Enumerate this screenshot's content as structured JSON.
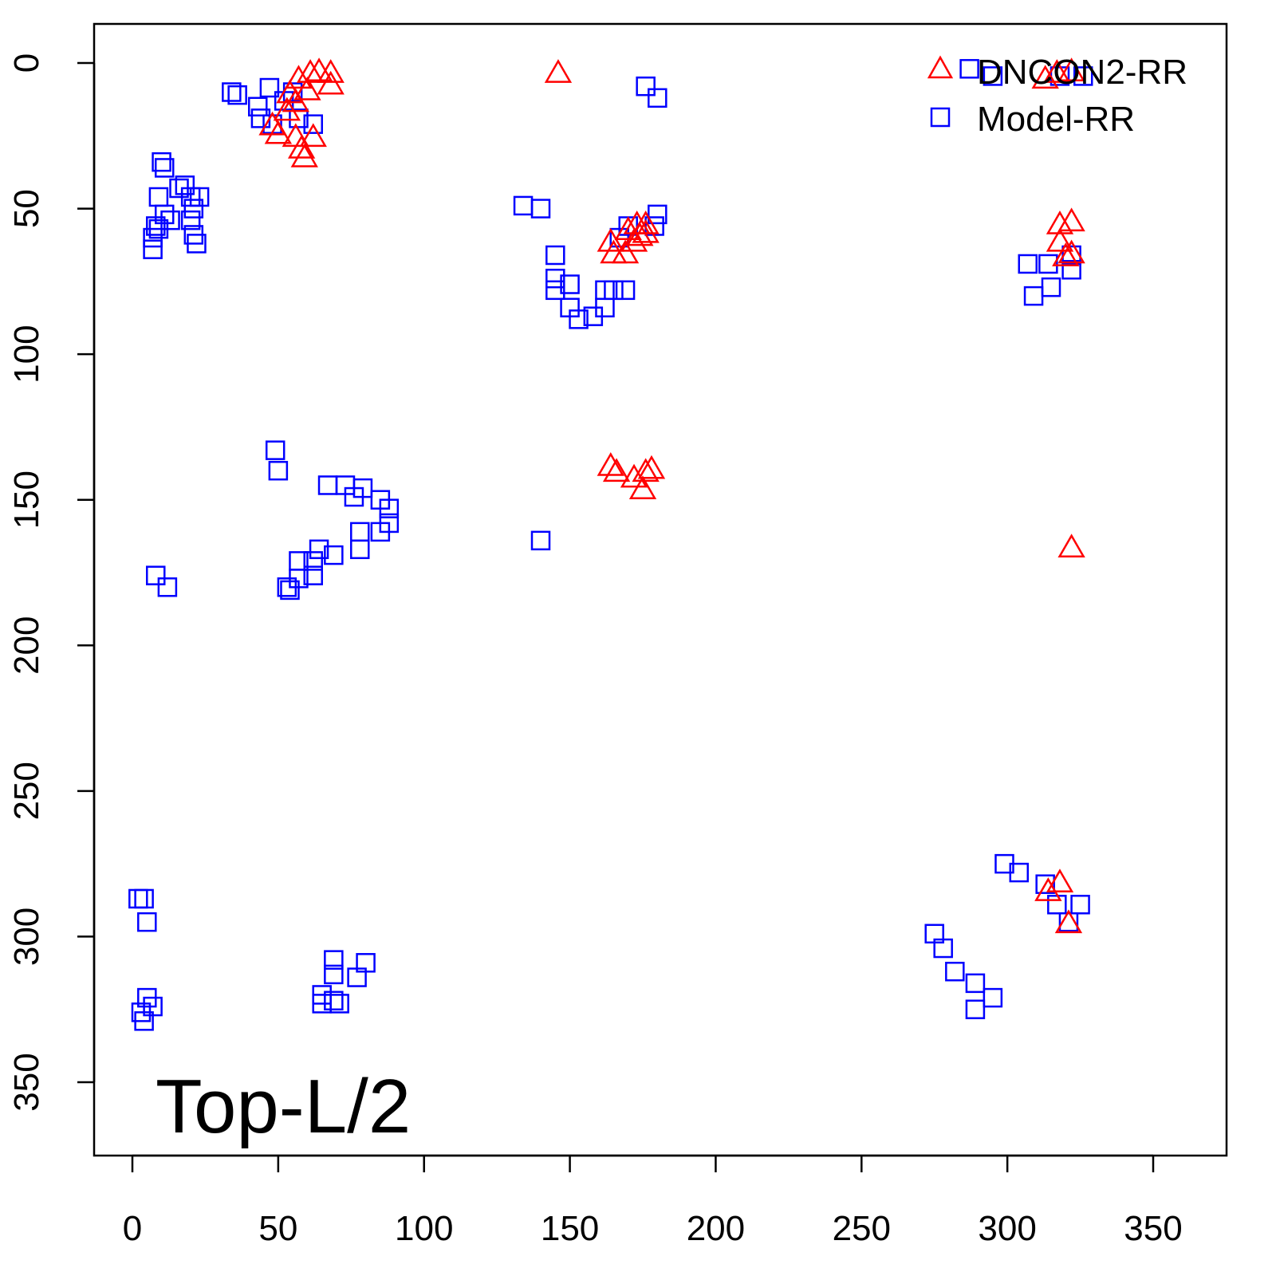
{
  "chart_data": {
    "type": "scatter",
    "title": "",
    "xlabel": "",
    "ylabel": "",
    "xlim": [
      -13,
      375
    ],
    "ylim": [
      375,
      -13
    ],
    "y_reversed": true,
    "grid": false,
    "xticks": [
      0,
      50,
      100,
      150,
      200,
      250,
      300,
      350
    ],
    "yticks": [
      0,
      50,
      100,
      150,
      200,
      250,
      300,
      350
    ],
    "annotation": "Top-L/2",
    "legend": {
      "placement": "top-right",
      "entries": [
        "DNCON2-RR",
        "Model-RR"
      ]
    },
    "series": [
      {
        "name": "DNCON2-RR",
        "marker": "triangle",
        "color": "#ff0000",
        "points": [
          [
            48,
            22
          ],
          [
            50,
            25
          ],
          [
            53,
            17
          ],
          [
            54,
            11
          ],
          [
            57,
            6
          ],
          [
            61,
            4
          ],
          [
            64,
            3.5
          ],
          [
            68,
            4
          ],
          [
            68,
            8
          ],
          [
            56,
            26
          ],
          [
            58,
            30
          ],
          [
            59,
            33
          ],
          [
            62,
            26
          ],
          [
            56,
            14
          ],
          [
            60,
            10
          ],
          [
            146,
            4
          ],
          [
            317,
            4
          ],
          [
            322,
            3.5
          ],
          [
            313,
            6
          ],
          [
            164,
            62
          ],
          [
            165,
            66
          ],
          [
            169,
            66
          ],
          [
            170,
            58
          ],
          [
            173,
            56
          ],
          [
            176,
            56
          ],
          [
            172,
            62
          ],
          [
            174,
            60
          ],
          [
            176,
            59
          ],
          [
            318,
            56
          ],
          [
            322,
            55
          ],
          [
            318,
            62
          ],
          [
            322,
            66
          ],
          [
            320,
            67
          ],
          [
            164,
            139
          ],
          [
            166,
            141
          ],
          [
            172,
            143
          ],
          [
            176,
            141
          ],
          [
            178,
            140
          ],
          [
            175,
            147
          ],
          [
            322,
            167
          ],
          [
            318,
            282
          ],
          [
            314,
            285
          ],
          [
            321,
            296
          ]
        ]
      },
      {
        "name": "Model-RR",
        "marker": "square",
        "color": "#0000ff",
        "points": [
          [
            34,
            10
          ],
          [
            36,
            11
          ],
          [
            47,
            8.5
          ],
          [
            43,
            15
          ],
          [
            44,
            19
          ],
          [
            48,
            21
          ],
          [
            52,
            13
          ],
          [
            55,
            10
          ],
          [
            62,
            21
          ],
          [
            57,
            19
          ],
          [
            10,
            34
          ],
          [
            11,
            36
          ],
          [
            9,
            46
          ],
          [
            16,
            43
          ],
          [
            18,
            42
          ],
          [
            20,
            46
          ],
          [
            23,
            46
          ],
          [
            21,
            50
          ],
          [
            11,
            52
          ],
          [
            13,
            54
          ],
          [
            8,
            56
          ],
          [
            7,
            60
          ],
          [
            7,
            64
          ],
          [
            20,
            54
          ],
          [
            21,
            59
          ],
          [
            22,
            62
          ],
          [
            9,
            57
          ],
          [
            176,
            8
          ],
          [
            180,
            12
          ],
          [
            134,
            49
          ],
          [
            140,
            50
          ],
          [
            145,
            66
          ],
          [
            145,
            74
          ],
          [
            150,
            76
          ],
          [
            145,
            78
          ],
          [
            150,
            84
          ],
          [
            153,
            88
          ],
          [
            158,
            87
          ],
          [
            162,
            84
          ],
          [
            162,
            78
          ],
          [
            165,
            78
          ],
          [
            169,
            78
          ],
          [
            167,
            60
          ],
          [
            170,
            56
          ],
          [
            180,
            52
          ],
          [
            179,
            56
          ],
          [
            287,
            2
          ],
          [
            295,
            4.5
          ],
          [
            318,
            4.5
          ],
          [
            326,
            4.5
          ],
          [
            307,
            69
          ],
          [
            314,
            69
          ],
          [
            309,
            80
          ],
          [
            315,
            77
          ],
          [
            322,
            71
          ],
          [
            322,
            66
          ],
          [
            49,
            133
          ],
          [
            50,
            140
          ],
          [
            67,
            145
          ],
          [
            73,
            145
          ],
          [
            76,
            149
          ],
          [
            79,
            146
          ],
          [
            85,
            150
          ],
          [
            88,
            153
          ],
          [
            88,
            158
          ],
          [
            85,
            161
          ],
          [
            78,
            161
          ],
          [
            78,
            167
          ],
          [
            69,
            169
          ],
          [
            64,
            167
          ],
          [
            62,
            171
          ],
          [
            62,
            176
          ],
          [
            57,
            171
          ],
          [
            57,
            177
          ],
          [
            53,
            180
          ],
          [
            54,
            181
          ],
          [
            8,
            176
          ],
          [
            12,
            180
          ],
          [
            140,
            164
          ],
          [
            2,
            287
          ],
          [
            4,
            287
          ],
          [
            5,
            295
          ],
          [
            5,
            321
          ],
          [
            7,
            324
          ],
          [
            3,
            326
          ],
          [
            4,
            329
          ],
          [
            69,
            308
          ],
          [
            80,
            309
          ],
          [
            77,
            314
          ],
          [
            69,
            313
          ],
          [
            65,
            320
          ],
          [
            65,
            323
          ],
          [
            69,
            322
          ],
          [
            71,
            323
          ],
          [
            299,
            275
          ],
          [
            304,
            278
          ],
          [
            275,
            299
          ],
          [
            278,
            304
          ],
          [
            282,
            312
          ],
          [
            289,
            316
          ],
          [
            289,
            325
          ],
          [
            295,
            321
          ],
          [
            313,
            282
          ],
          [
            317,
            289
          ],
          [
            321,
            295
          ],
          [
            325,
            289
          ]
        ]
      }
    ]
  }
}
